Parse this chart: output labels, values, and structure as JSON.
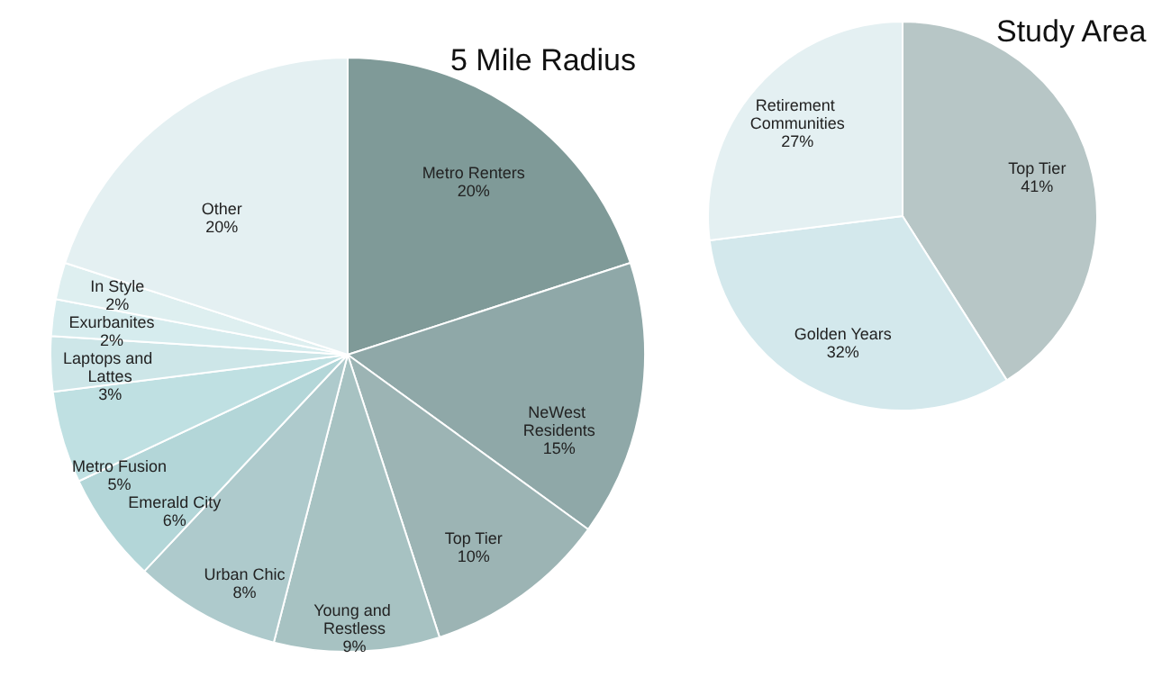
{
  "chart_data": [
    {
      "type": "pie",
      "title": "5 Mile Radius",
      "categories": [
        "Metro Renters",
        "NeWest Residents",
        "Top Tier",
        "Young and Restless",
        "Urban Chic",
        "Emerald City",
        "Metro Fusion",
        "Laptops and Lattes",
        "Exurbanites",
        "In Style",
        "Other"
      ],
      "values": [
        20,
        15,
        10,
        9,
        8,
        6,
        5,
        3,
        2,
        2,
        20
      ],
      "colors": [
        "#7f9a98",
        "#8fa8a8",
        "#9cb4b4",
        "#a7c2c2",
        "#aecacc",
        "#b3d6d8",
        "#bfe0e2",
        "#cde6e8",
        "#d6ecee",
        "#deeff0",
        "#e4f0f2"
      ],
      "value_labels": [
        "20%",
        "15%",
        "10%",
        "9%",
        "8%",
        "6%",
        "5%",
        "3%",
        "2%",
        "2%",
        "20%"
      ]
    },
    {
      "type": "pie",
      "title": "Study Area",
      "categories": [
        "Top Tier",
        "Golden Years",
        "Retirement Communities"
      ],
      "values": [
        41,
        32,
        27
      ],
      "colors": [
        "#b7c6c6",
        "#d3e8ec",
        "#e4f0f2"
      ],
      "value_labels": [
        "41%",
        "32%",
        "27%"
      ]
    }
  ]
}
